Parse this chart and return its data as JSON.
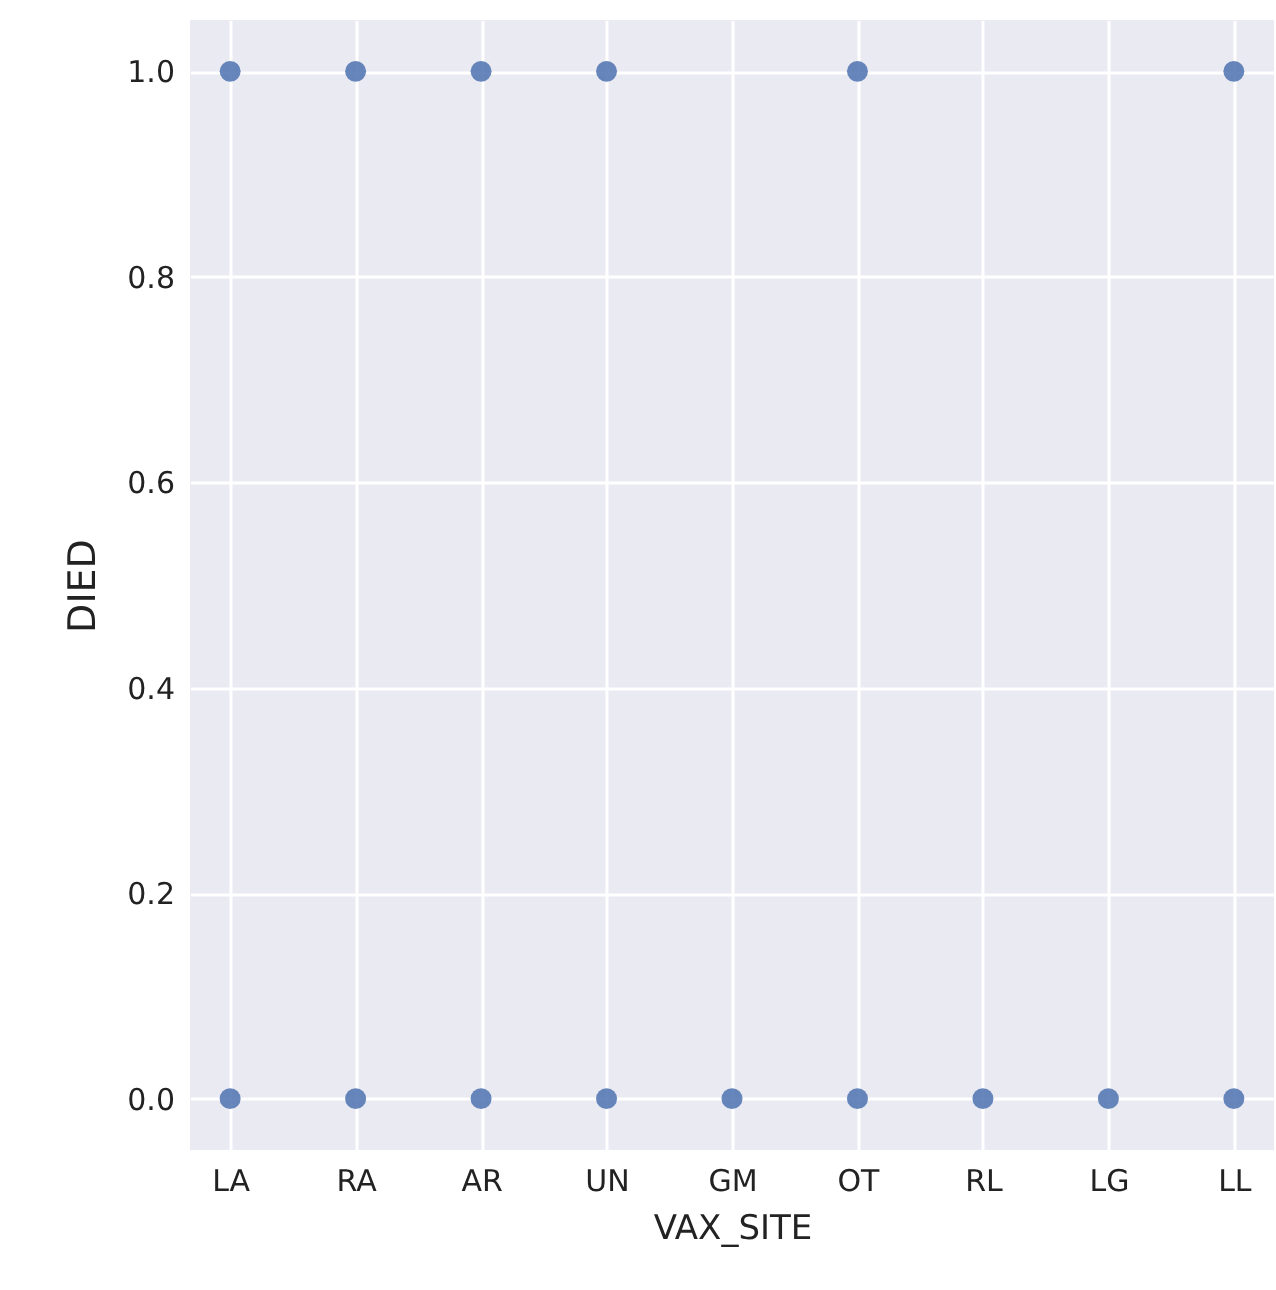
{
  "chart_data": {
    "type": "scatter",
    "xlabel": "VAX_SITE",
    "ylabel": "DIED",
    "categories": [
      "LA",
      "RA",
      "AR",
      "UN",
      "GM",
      "OT",
      "RL",
      "LG",
      "LL"
    ],
    "series": [
      {
        "color": "#4c72b0",
        "x": [
          "LA",
          "RA",
          "AR",
          "UN",
          "OT",
          "LL"
        ],
        "values": [
          1,
          1,
          1,
          1,
          1,
          1
        ]
      },
      {
        "color": "#4c72b0",
        "x": [
          "LA",
          "RA",
          "AR",
          "UN",
          "GM",
          "OT",
          "RL",
          "LG",
          "LL"
        ],
        "values": [
          0,
          0,
          0,
          0,
          0,
          0,
          0,
          0,
          0
        ]
      }
    ],
    "ylim": [
      -0.05,
      1.05
    ],
    "yticks": [
      {
        "value": 0,
        "label": "0.0"
      },
      {
        "value": 0.2,
        "label": "0.2"
      },
      {
        "value": 0.4,
        "label": "0.4"
      },
      {
        "value": 0.6,
        "label": "0.6"
      },
      {
        "value": 0.8,
        "label": "0.8"
      },
      {
        "value": 1,
        "label": "1.0"
      }
    ],
    "grid": true,
    "marker": "circle"
  }
}
